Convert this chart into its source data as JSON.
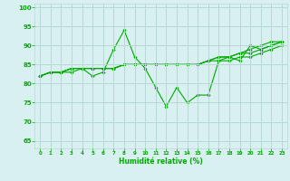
{
  "background_color": "#d8f0f0",
  "grid_color": "#b8d8d8",
  "line_color": "#00aa00",
  "marker_color": "#00aa00",
  "xlabel": "Humidité relative (%)",
  "xlabel_color": "#00aa00",
  "ylabel_color": "#00aa00",
  "ylim": [
    63,
    101
  ],
  "xlim": [
    -0.5,
    23.5
  ],
  "yticks": [
    65,
    70,
    75,
    80,
    85,
    90,
    95,
    100
  ],
  "xticks": [
    0,
    1,
    2,
    3,
    4,
    5,
    6,
    7,
    8,
    9,
    10,
    11,
    12,
    13,
    14,
    15,
    16,
    17,
    18,
    19,
    20,
    21,
    22,
    23
  ],
  "series": [
    [
      82,
      83,
      83,
      83,
      84,
      82,
      83,
      89,
      94,
      87,
      84,
      79,
      74,
      79,
      75,
      77,
      77,
      86,
      87,
      86,
      90,
      89,
      90,
      91
    ],
    [
      82,
      83,
      83,
      84,
      84,
      84,
      84,
      84,
      85,
      85,
      85,
      85,
      85,
      85,
      85,
      85,
      86,
      86,
      86,
      87,
      87,
      88,
      89,
      90
    ],
    [
      82,
      83,
      83,
      84,
      84,
      84,
      84,
      84,
      85,
      85,
      85,
      85,
      85,
      85,
      85,
      85,
      86,
      87,
      87,
      88,
      88,
      89,
      90,
      91
    ],
    [
      82,
      83,
      83,
      84,
      84,
      84,
      84,
      84,
      85,
      85,
      85,
      85,
      85,
      85,
      85,
      85,
      86,
      87,
      87,
      88,
      89,
      90,
      91,
      91
    ]
  ]
}
